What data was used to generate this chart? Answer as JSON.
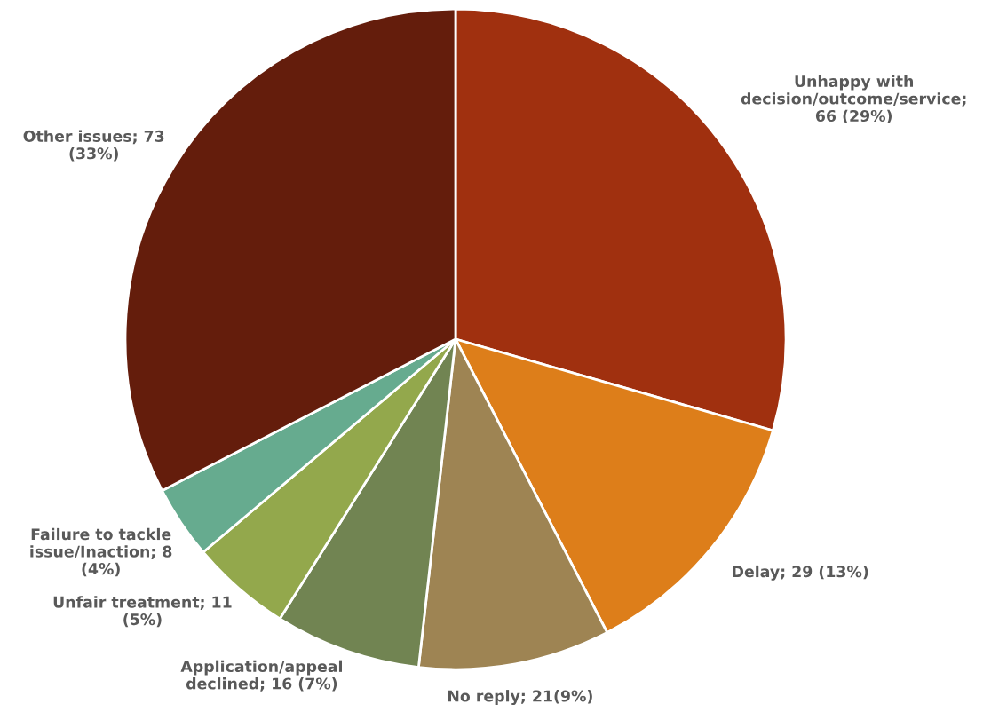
{
  "chart_data": {
    "type": "pie",
    "categories": [
      "Unhappy with decision/outcome/service; 66 (29%)",
      "Delay; 29 (13%)",
      "No reply; 21(9%)",
      "Application/appeal declined; 16 (7%)",
      "Unfair treatment; 11 (5%)",
      "Failure to tackle issue/Inaction; 8 (4%)",
      "Other issues; 73 (33%)"
    ],
    "values": [
      66,
      29,
      21,
      16,
      11,
      8,
      73
    ],
    "colors": [
      "#a0300f",
      "#dd7e1a",
      "#9e8453",
      "#718452",
      "#93a84c",
      "#66ab8f",
      "#641d0c"
    ]
  }
}
